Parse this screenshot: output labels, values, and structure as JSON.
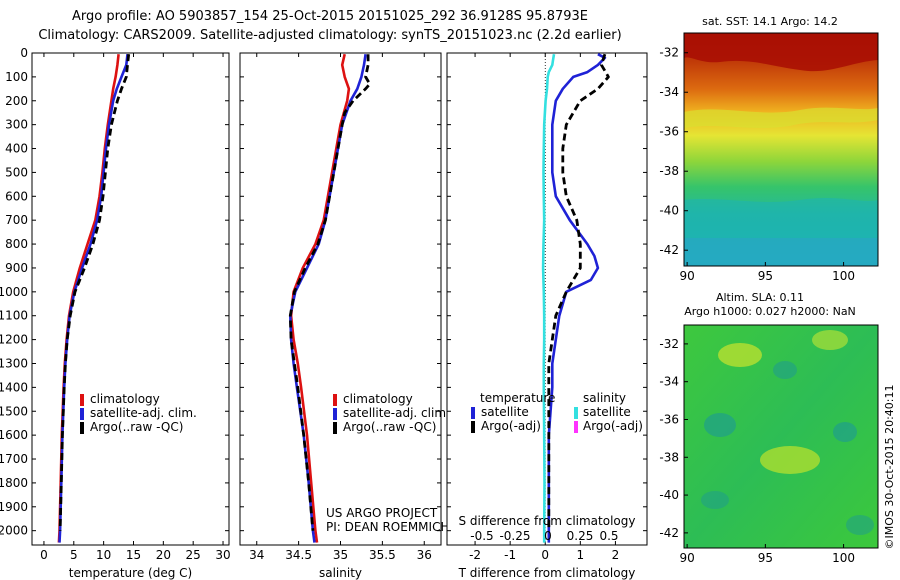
{
  "header": {
    "title_line1": "Argo profile: AO 5903857_154 25-Oct-2015 20151025_292 36.9128S 95.8793E",
    "title_line2": "Climatology: CARS2009. Satellite-adjusted climatology: synTS_20151023.nc (2.2d earlier)"
  },
  "colors": {
    "climatology": "#dd1111",
    "satellite": "#1f22d6",
    "argo": "#000000",
    "salinity_satellite": "#33e0e0",
    "argo_adj_salinity": "#ff33ff"
  },
  "chart_data": [
    {
      "type": "line",
      "id": "temperature",
      "xlabel": "temperature (deg C)",
      "xlim": [
        -2,
        31
      ],
      "xticks": [
        0,
        5,
        10,
        15,
        20,
        25,
        30
      ],
      "ylim": [
        0,
        2060
      ],
      "yticks": [
        0,
        100,
        200,
        300,
        400,
        500,
        600,
        700,
        800,
        900,
        1000,
        1100,
        1200,
        1300,
        1400,
        1500,
        1600,
        1700,
        1800,
        1900,
        2000
      ],
      "legend": [
        "climatology",
        "satellite-adj. clim.",
        "Argo(..raw -QC)"
      ],
      "series": [
        {
          "name": "climatology",
          "color": "#dd1111",
          "style": "solid",
          "depth": [
            5,
            50,
            100,
            150,
            200,
            300,
            400,
            500,
            600,
            700,
            800,
            900,
            1000,
            1100,
            1200,
            1300,
            1400,
            1600,
            1800,
            2000,
            2050
          ],
          "values": [
            12.5,
            12.3,
            12.0,
            11.6,
            11.3,
            10.7,
            10.2,
            9.8,
            9.3,
            8.6,
            7.3,
            6.0,
            4.9,
            4.2,
            3.8,
            3.5,
            3.3,
            3.0,
            2.8,
            2.6,
            2.5
          ]
        },
        {
          "name": "satellite-adj. clim.",
          "color": "#1f22d6",
          "style": "solid",
          "depth": [
            5,
            50,
            100,
            150,
            200,
            300,
            400,
            500,
            600,
            700,
            800,
            900,
            1000,
            1100,
            1200,
            1300,
            1400,
            1600,
            1800,
            2000,
            2050
          ],
          "values": [
            14.0,
            13.8,
            13.0,
            12.2,
            11.6,
            10.9,
            10.4,
            10.0,
            9.6,
            8.9,
            7.8,
            6.4,
            5.1,
            4.3,
            3.9,
            3.6,
            3.4,
            3.1,
            2.9,
            2.7,
            2.6
          ]
        },
        {
          "name": "Argo(..raw -QC)",
          "color": "#000000",
          "style": "dashed",
          "depth": [
            5,
            50,
            100,
            150,
            200,
            250,
            300,
            400,
            500,
            600,
            700,
            800,
            900,
            1000,
            1100,
            1200,
            1300,
            1400,
            1600,
            1800,
            2000
          ],
          "values": [
            14.2,
            14.0,
            13.8,
            13.0,
            12.3,
            11.8,
            11.3,
            10.7,
            10.3,
            9.9,
            9.3,
            8.2,
            6.8,
            5.2,
            4.4,
            3.9,
            3.6,
            3.4,
            3.1,
            2.9,
            2.7
          ]
        }
      ]
    },
    {
      "type": "line",
      "id": "salinity",
      "xlabel": "salinity",
      "xlim": [
        33.8,
        36.2
      ],
      "xticks": [
        34,
        34.5,
        35,
        35.5,
        36
      ],
      "ylim": [
        0,
        2060
      ],
      "legend": [
        "climatology",
        "satellite-adj. clim.",
        "Argo(..raw -QC)"
      ],
      "annotation": [
        "US ARGO PROJECT",
        "PI: DEAN ROEMMICH"
      ],
      "series": [
        {
          "name": "climatology",
          "color": "#dd1111",
          "style": "solid",
          "depth": [
            5,
            50,
            100,
            150,
            200,
            300,
            400,
            500,
            600,
            700,
            800,
            900,
            1000,
            1100,
            1200,
            1300,
            1400,
            1600,
            1800,
            2000,
            2050
          ],
          "values": [
            35.05,
            35.02,
            35.05,
            35.1,
            35.08,
            35.0,
            34.95,
            34.9,
            34.85,
            34.8,
            34.7,
            34.55,
            34.44,
            34.41,
            34.44,
            34.49,
            34.53,
            34.6,
            34.65,
            34.7,
            34.72
          ]
        },
        {
          "name": "satellite-adj. clim.",
          "color": "#1f22d6",
          "style": "solid",
          "depth": [
            5,
            50,
            100,
            150,
            200,
            300,
            400,
            500,
            600,
            700,
            800,
            900,
            1000,
            1100,
            1200,
            1300,
            1400,
            1600,
            1800,
            2000,
            2050
          ],
          "values": [
            35.3,
            35.28,
            35.25,
            35.2,
            35.12,
            35.02,
            34.97,
            34.92,
            34.87,
            34.82,
            34.74,
            34.6,
            34.46,
            34.4,
            34.41,
            34.44,
            34.48,
            34.56,
            34.62,
            34.67,
            34.69
          ]
        },
        {
          "name": "Argo(..raw -QC)",
          "color": "#000000",
          "style": "dashed",
          "depth": [
            5,
            50,
            100,
            130,
            150,
            200,
            250,
            300,
            400,
            500,
            600,
            700,
            800,
            900,
            1000,
            1100,
            1200,
            1300,
            1400,
            1600,
            1800,
            2000
          ],
          "values": [
            35.33,
            35.33,
            35.3,
            35.35,
            35.3,
            35.15,
            35.05,
            35.02,
            34.97,
            34.92,
            34.87,
            34.82,
            34.73,
            34.58,
            34.45,
            34.4,
            34.41,
            34.45,
            34.49,
            34.56,
            34.62,
            34.67
          ]
        }
      ]
    },
    {
      "type": "line",
      "id": "difference",
      "xlabel": "T difference from climatology",
      "xlabel_top": "S difference from climatology",
      "xlim": [
        -2.8,
        2.9
      ],
      "xticks": [
        -2,
        -1,
        0,
        1,
        2
      ],
      "s_ticks": [
        "-0.5",
        "-0.25",
        "0",
        "0.25",
        "0.5"
      ],
      "ylim": [
        0,
        2060
      ],
      "legend": {
        "temperature_heading": "temperature",
        "salinity_heading": "salinity",
        "temperature_items": [
          "satellite",
          "Argo(-adj)"
        ],
        "salinity_items": [
          "satellite",
          "Argo(-adj)"
        ]
      },
      "series": [
        {
          "name": "satellite",
          "group": "temperature",
          "color": "#1f22d6",
          "style": "solid",
          "depth": [
            5,
            20,
            50,
            80,
            100,
            150,
            200,
            300,
            400,
            500,
            600,
            700,
            800,
            850,
            900,
            950,
            1000,
            1100,
            1200,
            1300,
            1400,
            1600,
            1800,
            2000,
            2050
          ],
          "values": [
            1.5,
            1.7,
            1.5,
            1.2,
            0.8,
            0.5,
            0.3,
            0.2,
            0.2,
            0.2,
            0.3,
            0.7,
            1.2,
            1.4,
            1.5,
            1.3,
            0.6,
            0.4,
            0.3,
            0.2,
            0.2,
            0.1,
            0.1,
            0.1,
            0.1
          ]
        },
        {
          "name": "Argo(-adj)",
          "group": "temperature",
          "color": "#000000",
          "style": "dashed",
          "depth": [
            5,
            50,
            100,
            150,
            200,
            250,
            300,
            400,
            500,
            600,
            700,
            800,
            900,
            1000,
            1100,
            1200,
            1300,
            1400,
            1600,
            1800,
            2000
          ],
          "values": [
            1.7,
            1.6,
            1.8,
            1.5,
            1.0,
            0.8,
            0.6,
            0.5,
            0.5,
            0.6,
            0.9,
            1.0,
            1.0,
            0.6,
            0.3,
            0.2,
            0.1,
            0.1,
            0.1,
            0.1,
            0.1
          ]
        },
        {
          "name": "satellite",
          "group": "salinity",
          "color": "#33e0e0",
          "style": "solid",
          "depth": [
            5,
            30,
            50,
            80,
            100,
            150,
            200,
            300,
            400,
            500,
            600,
            700,
            800,
            900,
            1000,
            1100,
            1200,
            1300,
            1400,
            1600,
            1800,
            2000,
            2050
          ],
          "values": [
            0.25,
            0.22,
            0.2,
            0.1,
            0.07,
            0.05,
            0.01,
            -0.03,
            -0.04,
            -0.05,
            -0.04,
            -0.03,
            -0.05,
            -0.06,
            -0.04,
            -0.03,
            -0.03,
            -0.04,
            -0.04,
            -0.03,
            -0.02,
            -0.03,
            -0.03
          ]
        }
      ]
    },
    {
      "type": "heatmap",
      "id": "sst-map",
      "title": "sat. SST: 14.1  Argo: 14.2",
      "xlim": [
        89.8,
        102.2
      ],
      "ylim": [
        -42.8,
        -31.0
      ],
      "xticks": [
        90,
        95,
        100
      ],
      "yticks": [
        -32,
        -34,
        -36,
        -38,
        -40,
        -42
      ]
    },
    {
      "type": "heatmap",
      "id": "sla-map",
      "title_line1": "Altim. SLA: 0.11",
      "title_line2": "Argo h1000: 0.027 h2000: NaN",
      "xlim": [
        89.8,
        102.2
      ],
      "ylim": [
        -42.8,
        -31.0
      ],
      "xticks": [
        90,
        95,
        100
      ],
      "yticks": [
        -32,
        -34,
        -36,
        -38,
        -40,
        -42
      ]
    }
  ],
  "footer": {
    "credit": "©IMOS 30-Oct-2015 20:40:11"
  }
}
